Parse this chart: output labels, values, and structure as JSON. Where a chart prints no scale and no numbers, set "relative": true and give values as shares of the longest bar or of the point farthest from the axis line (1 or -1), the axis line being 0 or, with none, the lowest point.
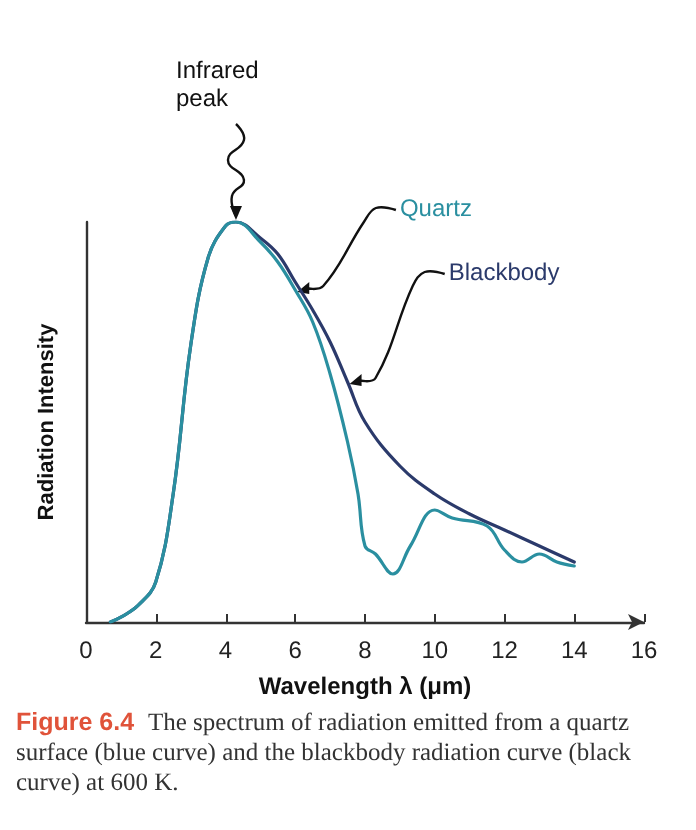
{
  "chart_data": {
    "type": "line",
    "relative": true,
    "xlabel": "Wavelength λ (μm)",
    "ylabel": "Radiation Intensity",
    "xlim": [
      0,
      16
    ],
    "xticks": [
      0,
      2,
      4,
      6,
      8,
      10,
      12,
      14,
      16
    ],
    "grid": false,
    "legend": false,
    "marker": "none",
    "line_style": "solid",
    "series": [
      {
        "name": "Blackbody",
        "color": "#2b3a6b",
        "x": [
          0.7,
          1,
          1.5,
          2,
          2.5,
          3,
          3.5,
          4,
          4.3,
          5,
          5.5,
          6,
          6.5,
          7,
          7.5,
          8,
          9,
          10,
          11,
          12,
          13,
          14
        ],
        "values": [
          0,
          0.012,
          0.042,
          0.1,
          0.32,
          0.69,
          0.91,
          0.99,
          1,
          0.96,
          0.92,
          0.85,
          0.78,
          0.7,
          0.6,
          0.5,
          0.39,
          0.32,
          0.27,
          0.23,
          0.19,
          0.15
        ]
      },
      {
        "name": "Quartz",
        "color": "#2a8fa0",
        "x": [
          0.7,
          1,
          1.5,
          2,
          2.5,
          3,
          3.5,
          4,
          4.3,
          5,
          5.5,
          6,
          6.5,
          7,
          7.5,
          7.8,
          8,
          8.3,
          8.8,
          9.3,
          10,
          10.5,
          11.5,
          12,
          12.5,
          13,
          13.5,
          14
        ],
        "values": [
          0,
          0.012,
          0.042,
          0.1,
          0.32,
          0.69,
          0.91,
          0.99,
          1,
          0.95,
          0.9,
          0.83,
          0.75,
          0.62,
          0.45,
          0.32,
          0.19,
          0.17,
          0.12,
          0.19,
          0.28,
          0.26,
          0.24,
          0.18,
          0.15,
          0.17,
          0.15,
          0.14
        ]
      }
    ],
    "annotations": [
      {
        "text": "Infrared peak",
        "x": 4.3,
        "y": 1
      },
      "Figure 6.4",
      "The spectrum of radiation emitted from a quartz surface (blue curve) and the blackbody radiation curve (black curve) at 600 K."
    ]
  }
}
